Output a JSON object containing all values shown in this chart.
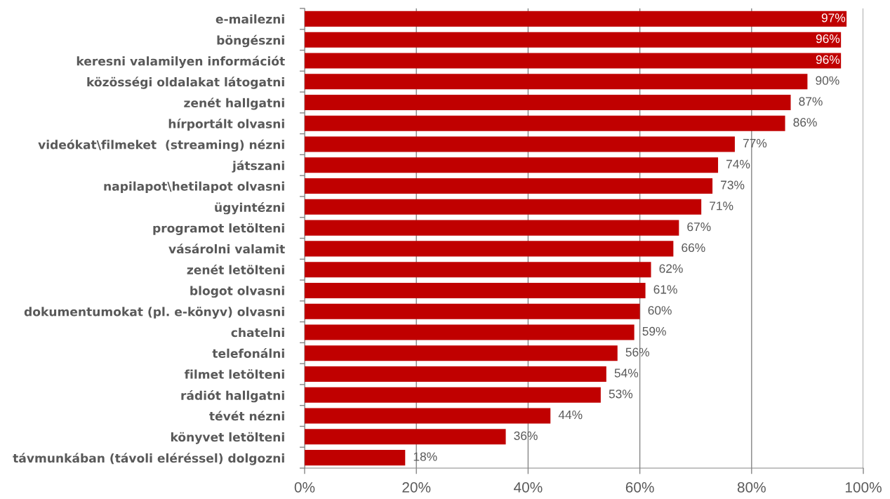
{
  "chart_data": {
    "type": "bar",
    "orientation": "horizontal",
    "categories": [
      "e-mailezni",
      "böngészni",
      "keresni valamilyen információt",
      "közösségi oldalakat látogatni",
      "zenét hallgatni",
      "hírportált olvasni",
      "videókat\\filmeket  (streaming) nézni",
      "játszani",
      "napilapot\\hetilapot olvasni",
      "ügyintézni",
      "programot letölteni",
      "vásárolni valamit",
      "zenét letölteni",
      "blogot olvasni",
      "dokumentumokat (pl. e-könyv) olvasni",
      "chatelni",
      "telefonálni",
      "filmet letölteni",
      "rádiót hallgatni",
      "tévét nézni",
      "könyvet letölteni",
      "távmunkában (távoli eléréssel) dolgozni"
    ],
    "values": [
      97,
      96,
      96,
      90,
      87,
      86,
      77,
      74,
      73,
      71,
      67,
      66,
      62,
      61,
      60,
      59,
      56,
      54,
      53,
      44,
      36,
      18
    ],
    "value_labels": [
      "97%",
      "96%",
      "96%",
      "90%",
      "87%",
      "86%",
      "77%",
      "74%",
      "73%",
      "71%",
      "67%",
      "66%",
      "62%",
      "61%",
      "60%",
      "59%",
      "56%",
      "54%",
      "53%",
      "44%",
      "36%",
      "18%"
    ],
    "color": "#c00000",
    "xlim": [
      0,
      100
    ],
    "xticks": [
      {
        "value": 0,
        "label": "0%"
      },
      {
        "value": 20,
        "label": "20%"
      },
      {
        "value": 40,
        "label": "40%"
      },
      {
        "value": 60,
        "label": "60%"
      },
      {
        "value": 80,
        "label": "80%"
      },
      {
        "value": 100,
        "label": "100%"
      }
    ],
    "grid": "x"
  }
}
